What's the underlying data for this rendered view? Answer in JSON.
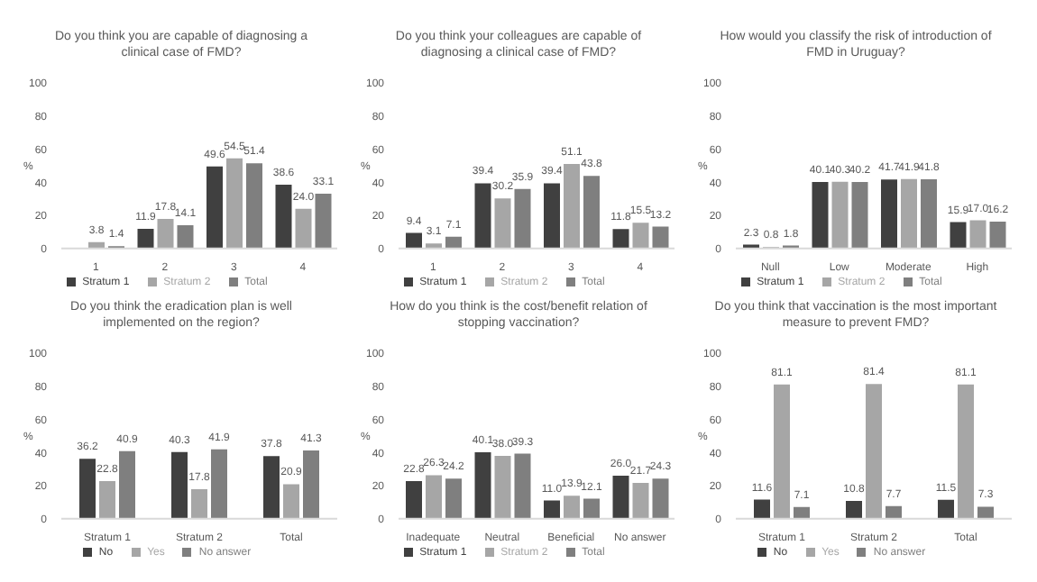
{
  "chart_data": [
    {
      "type": "bar",
      "title": "Do you think you are capable of diagnosing a clinical case of FMD?",
      "ylabel": "%",
      "categories": [
        "1",
        "2",
        "3",
        "4"
      ],
      "ylim": [
        0,
        100
      ],
      "yticks": [
        0,
        20,
        40,
        60,
        80,
        100
      ],
      "legend": "bottom",
      "data_labels": true,
      "series": [
        {
          "name": "Stratum 1",
          "color": "#404040",
          "values": [
            0,
            11.9,
            49.6,
            38.6
          ],
          "value_labels": [
            null,
            "11.9",
            "49.6",
            "38.6"
          ]
        },
        {
          "name": "Stratum 2",
          "color": "#a6a6a6",
          "values": [
            3.8,
            17.8,
            54.5,
            24.0
          ],
          "value_labels": [
            "3.8",
            "17.8",
            "54.5",
            "24.0"
          ]
        },
        {
          "name": "Total",
          "color": "#7f7f7f",
          "values": [
            1.4,
            14.1,
            51.4,
            33.1
          ]
        }
      ]
    },
    {
      "type": "bar",
      "title": "Do you think your colleagues are capable of diagnosing a clinical case of FMD?",
      "ylabel": "%",
      "categories": [
        "1",
        "2",
        "3",
        "4"
      ],
      "ylim": [
        0,
        100
      ],
      "yticks": [
        0,
        20,
        40,
        60,
        80,
        100
      ],
      "legend": "bottom",
      "data_labels": true,
      "series": [
        {
          "name": "Stratum 1",
          "color": "#404040",
          "values": [
            9.4,
            39.4,
            39.4,
            11.8
          ]
        },
        {
          "name": "Stratum 2",
          "color": "#a6a6a6",
          "values": [
            3.1,
            30.2,
            51.1,
            15.5
          ]
        },
        {
          "name": "Total",
          "color": "#7f7f7f",
          "values": [
            7.1,
            35.9,
            43.8,
            13.2
          ]
        }
      ]
    },
    {
      "type": "bar",
      "title": "How would you classify the risk of introduction of FMD in Uruguay?",
      "ylabel": "%",
      "categories": [
        "Null",
        "Low",
        "Moderate",
        "High"
      ],
      "ylim": [
        0,
        100
      ],
      "yticks": [
        0,
        20,
        40,
        60,
        80,
        100
      ],
      "legend": "bottom",
      "data_labels": true,
      "series": [
        {
          "name": "Stratum 1",
          "color": "#404040",
          "values": [
            2.3,
            40.1,
            41.7,
            15.9
          ]
        },
        {
          "name": "Stratum 2",
          "color": "#a6a6a6",
          "values": [
            0.8,
            40.3,
            41.9,
            17.0
          ],
          "value_labels": [
            "0.8",
            "40.3",
            "41.9",
            "17.0"
          ]
        },
        {
          "name": "Total",
          "color": "#7f7f7f",
          "values": [
            1.8,
            40.2,
            41.8,
            16.2
          ]
        }
      ]
    },
    {
      "type": "bar",
      "title": "Do you think the eradication plan is well implemented on the region?",
      "ylabel": "%",
      "categories": [
        "Stratum 1",
        "Stratum 2",
        "Total"
      ],
      "ylim": [
        0,
        100
      ],
      "yticks": [
        0,
        20,
        40,
        60,
        80,
        100
      ],
      "legend": "bottom",
      "data_labels": true,
      "series": [
        {
          "name": "No",
          "color": "#404040",
          "values": [
            36.2,
            40.3,
            37.8
          ]
        },
        {
          "name": "Yes",
          "color": "#a6a6a6",
          "values": [
            22.8,
            17.8,
            20.9
          ]
        },
        {
          "name": "No answer",
          "color": "#7f7f7f",
          "values": [
            40.9,
            41.9,
            41.3
          ]
        }
      ]
    },
    {
      "type": "bar",
      "title": "How do you think is the cost/benefit relation of stopping vaccination?",
      "ylabel": "%",
      "categories": [
        "Inadequate",
        "Neutral",
        "Beneficial",
        "No answer"
      ],
      "ylim": [
        0,
        100
      ],
      "yticks": [
        0,
        20,
        40,
        60,
        80,
        100
      ],
      "legend": "bottom",
      "data_labels": true,
      "series": [
        {
          "name": "Stratum 1",
          "color": "#404040",
          "values": [
            22.8,
            40.1,
            11.0,
            26.0
          ],
          "value_labels": [
            "22.8",
            "40.1",
            "11.0",
            "26.0"
          ]
        },
        {
          "name": "Stratum 2",
          "color": "#a6a6a6",
          "values": [
            26.3,
            38.0,
            13.9,
            21.7
          ],
          "value_labels": [
            "26.3",
            "38.0",
            "13.9",
            "21.7"
          ]
        },
        {
          "name": "Total",
          "color": "#7f7f7f",
          "values": [
            24.2,
            39.3,
            12.1,
            24.3
          ]
        }
      ]
    },
    {
      "type": "bar",
      "title": "Do you think that vaccination is the most important measure to prevent FMD?",
      "ylabel": "%",
      "categories": [
        "Stratum 1",
        "Stratum 2",
        "Total"
      ],
      "ylim": [
        0,
        100
      ],
      "yticks": [
        0,
        20,
        40,
        60,
        80,
        100
      ],
      "legend": "bottom",
      "data_labels": true,
      "series": [
        {
          "name": "No",
          "color": "#404040",
          "values": [
            11.6,
            10.8,
            11.5
          ]
        },
        {
          "name": "Yes",
          "color": "#a6a6a6",
          "values": [
            81.1,
            81.4,
            81.1
          ]
        },
        {
          "name": "No answer",
          "color": "#7f7f7f",
          "values": [
            7.1,
            7.7,
            7.3
          ]
        }
      ]
    }
  ]
}
